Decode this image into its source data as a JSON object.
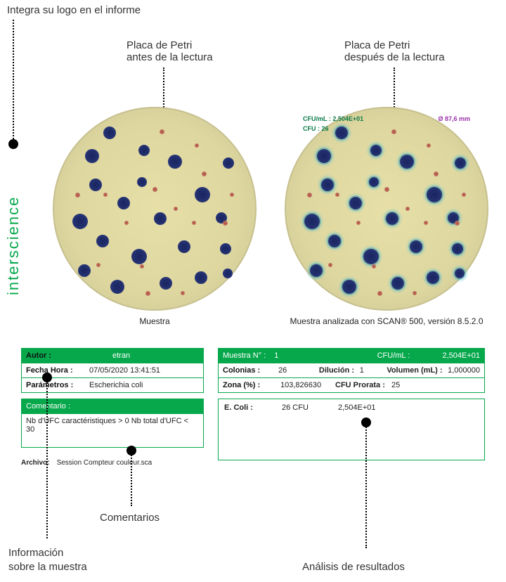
{
  "annotations": {
    "logo": "Integra su logo en el informe",
    "before": "Placa de Petri\nantes de la lectura",
    "after": "Placa de Petri\ndespués de la lectura",
    "sample_info_1": "Información",
    "sample_info_2": "sobre la muestra",
    "comments": "Comentarios",
    "analysis": "Análisis de resultados"
  },
  "brand": "interscience",
  "dishes": {
    "caption_left": "Muestra",
    "caption_right": "Muestra analizada con SCAN® 500, versión 8.5.2.0",
    "overlay": {
      "cfu_ml": "CFU/mL : 2,504E+01",
      "cfu": "CFU : 26",
      "diameter": "Ø 87,6 mm",
      "color_green": "#0a7a4a",
      "color_purple": "#9a2fa8"
    },
    "colony_blue_color": "#233170",
    "colony_red_color": "#b86050",
    "blue": [
      [
        70,
        26,
        18
      ],
      [
        120,
        52,
        16
      ],
      [
        44,
        58,
        20
      ],
      [
        162,
        66,
        20
      ],
      [
        240,
        70,
        16
      ],
      [
        50,
        100,
        18
      ],
      [
        200,
        112,
        22
      ],
      [
        90,
        126,
        18
      ],
      [
        230,
        148,
        16
      ],
      [
        26,
        150,
        22
      ],
      [
        60,
        180,
        18
      ],
      [
        110,
        200,
        22
      ],
      [
        176,
        188,
        18
      ],
      [
        236,
        192,
        16
      ],
      [
        80,
        244,
        20
      ],
      [
        150,
        240,
        18
      ],
      [
        200,
        232,
        18
      ],
      [
        240,
        228,
        14
      ],
      [
        34,
        222,
        18
      ],
      [
        142,
        148,
        18
      ],
      [
        118,
        98,
        14
      ]
    ],
    "red": [
      [
        150,
        30,
        7
      ],
      [
        200,
        50,
        6
      ],
      [
        30,
        120,
        7
      ],
      [
        100,
        160,
        6
      ],
      [
        140,
        112,
        7
      ],
      [
        170,
        140,
        6
      ],
      [
        210,
        90,
        7
      ],
      [
        250,
        120,
        6
      ],
      [
        240,
        160,
        7
      ],
      [
        60,
        220,
        6
      ],
      [
        130,
        260,
        7
      ],
      [
        180,
        260,
        6
      ],
      [
        196,
        160,
        6
      ],
      [
        122,
        222,
        6
      ],
      [
        70,
        120,
        6
      ]
    ]
  },
  "tables": {
    "left1": {
      "author_lab": "Autor :",
      "author_val": "etran",
      "date_lab": "Fecha Hora :",
      "date_val": "07/05/2020 13:41:51",
      "param_lab": "Parámetros :",
      "param_val": "Escherichia coli"
    },
    "left2": {
      "header": "Comentario :",
      "body": "Nb d'UFC caractéristiques > 0 Nb total d'UFC < 30"
    },
    "file": {
      "label": "Archivo:",
      "value": "Session Compteur couleur.sca"
    },
    "right1": {
      "sample_lab": "Muestra N° :",
      "sample_val": "1",
      "cfuml_lab": "CFU/mL :",
      "cfuml_val": "2,504E+01",
      "col_lab": "Colonias :",
      "col_val": "26",
      "dil_lab": "Dilución :",
      "dil_val": "1",
      "vol_lab": "Volumen (mL) :",
      "vol_val": "1,000000",
      "zone_lab": "Zona (%) :",
      "zone_val": "103,826630",
      "prorata_lab": "CFU Prorata :",
      "prorata_val": "25"
    },
    "right2": {
      "ecoli_lab": "E. Coli :",
      "ecoli_cfu": "26 CFU",
      "ecoli_val": "2,504E+01"
    }
  },
  "colors": {
    "green": "#07a84c"
  }
}
